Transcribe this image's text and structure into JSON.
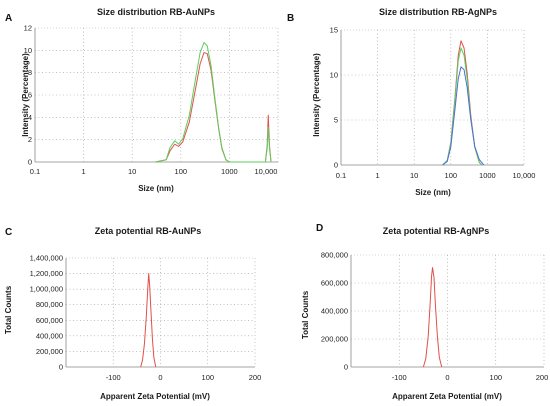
{
  "chart_data": [
    {
      "panel": "A",
      "type": "line",
      "title": "Size distribution RB-AuNPs",
      "xlabel": "Size (nm)",
      "ylabel": "Intensity (Percentage)",
      "xscale": "log",
      "xlim": [
        0.1,
        10000
      ],
      "ylim": [
        0,
        12
      ],
      "x_ticks": [
        "0.1",
        "1",
        "10",
        "100",
        "1000",
        "10,000"
      ],
      "y_ticks": [
        "0",
        "2",
        "4",
        "6",
        "8",
        "10",
        "12"
      ],
      "grid": "dotted",
      "series": [
        {
          "color": "#e0504a",
          "points": [
            [
              30,
              0
            ],
            [
              50,
              0.2
            ],
            [
              60,
              1.0
            ],
            [
              75,
              1.6
            ],
            [
              90,
              1.4
            ],
            [
              110,
              1.8
            ],
            [
              150,
              3.6
            ],
            [
              200,
              6.5
            ],
            [
              250,
              8.8
            ],
            [
              300,
              9.8
            ],
            [
              350,
              9.7
            ],
            [
              420,
              8.2
            ],
            [
              500,
              5.6
            ],
            [
              600,
              3.0
            ],
            [
              700,
              1.2
            ],
            [
              850,
              0.2
            ],
            [
              1000,
              0
            ],
            [
              5500,
              0
            ],
            [
              6000,
              1.5
            ],
            [
              6300,
              4.2
            ],
            [
              6700,
              1.4
            ],
            [
              7200,
              0
            ]
          ]
        },
        {
          "color": "#5ccf5c",
          "points": [
            [
              30,
              0
            ],
            [
              50,
              0.2
            ],
            [
              60,
              1.3
            ],
            [
              75,
              1.9
            ],
            [
              90,
              1.6
            ],
            [
              110,
              2.1
            ],
            [
              150,
              4.2
            ],
            [
              200,
              7.4
            ],
            [
              250,
              9.8
            ],
            [
              300,
              10.7
            ],
            [
              350,
              10.4
            ],
            [
              420,
              8.6
            ],
            [
              500,
              5.8
            ],
            [
              600,
              3.1
            ],
            [
              700,
              1.3
            ],
            [
              850,
              0.2
            ],
            [
              1000,
              0
            ],
            [
              5500,
              0
            ],
            [
              6000,
              1.2
            ],
            [
              6300,
              3.1
            ],
            [
              6700,
              1.1
            ],
            [
              7200,
              0
            ]
          ]
        }
      ]
    },
    {
      "panel": "B",
      "type": "line",
      "title": "Size distribution RB-AgNPs",
      "xlabel": "Size (nm)",
      "ylabel": "Intensity (Percentage)",
      "xscale": "log",
      "xlim": [
        0.1,
        10000
      ],
      "ylim": [
        0,
        15
      ],
      "x_ticks": [
        "0.1",
        "1",
        "10",
        "100",
        "1000",
        "10,000"
      ],
      "y_ticks": [
        "0",
        "5",
        "10",
        "15"
      ],
      "grid": "dotted",
      "series": [
        {
          "color": "#e0504a",
          "points": [
            [
              60,
              0
            ],
            [
              80,
              0.5
            ],
            [
              100,
              2.5
            ],
            [
              130,
              7.5
            ],
            [
              160,
              12.2
            ],
            [
              190,
              13.8
            ],
            [
              230,
              13.0
            ],
            [
              280,
              10.2
            ],
            [
              350,
              5.6
            ],
            [
              450,
              2.0
            ],
            [
              600,
              0.3
            ],
            [
              700,
              0
            ]
          ]
        },
        {
          "color": "#5ccf5c",
          "points": [
            [
              60,
              0
            ],
            [
              80,
              0.5
            ],
            [
              100,
              2.4
            ],
            [
              130,
              7.2
            ],
            [
              160,
              11.6
            ],
            [
              190,
              13.0
            ],
            [
              230,
              12.2
            ],
            [
              280,
              9.6
            ],
            [
              350,
              5.3
            ],
            [
              450,
              2.0
            ],
            [
              600,
              0.3
            ],
            [
              700,
              0
            ]
          ]
        },
        {
          "color": "#4a6fdc",
          "points": [
            [
              60,
              0
            ],
            [
              80,
              0.4
            ],
            [
              100,
              2.0
            ],
            [
              130,
              6.2
            ],
            [
              160,
              9.6
            ],
            [
              190,
              10.9
            ],
            [
              230,
              10.6
            ],
            [
              280,
              8.6
            ],
            [
              350,
              5.1
            ],
            [
              450,
              2.1
            ],
            [
              600,
              0.6
            ],
            [
              800,
              0
            ]
          ]
        }
      ]
    },
    {
      "panel": "C",
      "type": "line",
      "title": "Zeta potential RB-AuNPs",
      "xlabel": "Apparent Zeta Potential (mV)",
      "ylabel": "Total Counts",
      "xlim": [
        -200,
        200
      ],
      "ylim": [
        0,
        1400000
      ],
      "x_ticks": [
        "-100",
        "0",
        "100",
        "200"
      ],
      "y_ticks": [
        "0",
        "200,000",
        "400,000",
        "600,000",
        "800,000",
        "1,000,000",
        "1,200,000",
        "1,400,000"
      ],
      "grid": "dotted",
      "series": [
        {
          "color": "#e0504a",
          "points": [
            [
              -42,
              0
            ],
            [
              -38,
              90000
            ],
            [
              -34,
              300000
            ],
            [
              -30,
              650000
            ],
            [
              -27,
              1000000
            ],
            [
              -25,
              1200000
            ],
            [
              -23,
              1050000
            ],
            [
              -20,
              700000
            ],
            [
              -17,
              350000
            ],
            [
              -14,
              120000
            ],
            [
              -10,
              0
            ]
          ]
        }
      ]
    },
    {
      "panel": "D",
      "type": "line",
      "title": "Zeta potential RB-AgNPs",
      "xlabel": "Apparent Zeta Potential (mV)",
      "ylabel": "Total Counts",
      "xlim": [
        -200,
        200
      ],
      "ylim": [
        0,
        800000
      ],
      "x_ticks": [
        "-100",
        "0",
        "100",
        "200"
      ],
      "y_ticks": [
        "0",
        "200,000",
        "400,000",
        "600,000",
        "800,000"
      ],
      "grid": "dotted",
      "series": [
        {
          "color": "#e0504a",
          "points": [
            [
              -50,
              0
            ],
            [
              -45,
              60000
            ],
            [
              -40,
              220000
            ],
            [
              -36,
              450000
            ],
            [
              -33,
              650000
            ],
            [
              -31,
              710000
            ],
            [
              -28,
              640000
            ],
            [
              -25,
              440000
            ],
            [
              -21,
              220000
            ],
            [
              -17,
              70000
            ],
            [
              -12,
              0
            ]
          ]
        }
      ]
    }
  ]
}
